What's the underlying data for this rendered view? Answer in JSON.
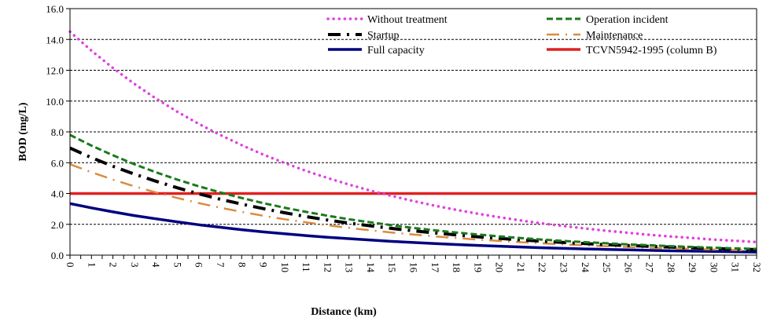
{
  "chart_data": {
    "type": "line",
    "title": "",
    "xlabel": "Distance (km)",
    "ylabel": "BOD (mg/L)",
    "xlim": [
      0,
      32
    ],
    "ylim": [
      0,
      16
    ],
    "yticks": [
      "0.0",
      "2.0",
      "4.0",
      "6.0",
      "8.0",
      "10.0",
      "12.0",
      "14.0",
      "16.0"
    ],
    "xticks": [
      "0",
      "1",
      "2",
      "3",
      "4",
      "5",
      "6",
      "7",
      "8",
      "9",
      "10",
      "11",
      "12",
      "13",
      "14",
      "15",
      "16",
      "17",
      "18",
      "19",
      "20",
      "21",
      "22",
      "23",
      "24",
      "25",
      "26",
      "27",
      "28",
      "29",
      "30",
      "31",
      "32"
    ],
    "grid": "horizontal dashed",
    "legend_position": "top-right",
    "x": [
      0,
      1,
      2,
      3,
      4,
      5,
      6,
      7,
      8,
      9,
      10,
      11,
      12,
      13,
      14,
      15,
      16,
      17,
      18,
      19,
      20,
      21,
      22,
      23,
      24,
      25,
      26,
      27,
      28,
      29,
      30,
      31,
      32
    ],
    "series": [
      {
        "name": "Without treatment",
        "color": "#e040e0",
        "style": "dotted",
        "values": [
          14.5,
          13.27,
          12.15,
          11.12,
          10.17,
          9.31,
          8.52,
          7.8,
          7.14,
          6.53,
          5.98,
          5.47,
          5.01,
          4.58,
          4.19,
          3.84,
          3.51,
          3.21,
          2.94,
          2.69,
          2.46,
          2.25,
          2.06,
          1.89,
          1.73,
          1.58,
          1.45,
          1.32,
          1.21,
          1.11,
          1.01,
          0.93,
          0.85
        ]
      },
      {
        "name": "Operation incident",
        "color": "#1a7a1a",
        "style": "dashed",
        "values": [
          7.8,
          7.11,
          6.48,
          5.9,
          5.38,
          4.9,
          4.47,
          4.07,
          3.71,
          3.38,
          3.08,
          2.81,
          2.56,
          2.33,
          2.13,
          1.94,
          1.77,
          1.61,
          1.47,
          1.34,
          1.22,
          1.11,
          1.01,
          0.92,
          0.84,
          0.77,
          0.7,
          0.64,
          0.58,
          0.53,
          0.48,
          0.44,
          0.4
        ]
      },
      {
        "name": "Startup",
        "color": "#000000",
        "style": "dash-dot",
        "values": [
          6.95,
          6.33,
          5.77,
          5.26,
          4.8,
          4.37,
          3.98,
          3.63,
          3.31,
          3.02,
          2.75,
          2.5,
          2.28,
          2.08,
          1.9,
          1.73,
          1.58,
          1.44,
          1.31,
          1.19,
          1.09,
          0.99,
          0.9,
          0.82,
          0.75,
          0.68,
          0.62,
          0.57,
          0.52,
          0.47,
          0.43,
          0.39,
          0.36
        ]
      },
      {
        "name": "Maintenance",
        "color": "#d98c40",
        "style": "dash-dot-dot",
        "values": [
          5.9,
          5.38,
          4.9,
          4.47,
          4.07,
          3.71,
          3.38,
          3.08,
          2.81,
          2.56,
          2.33,
          2.13,
          1.94,
          1.77,
          1.61,
          1.47,
          1.34,
          1.22,
          1.11,
          1.01,
          0.92,
          0.84,
          0.77,
          0.7,
          0.64,
          0.58,
          0.53,
          0.48,
          0.44,
          0.4,
          0.36,
          0.33,
          0.3
        ]
      },
      {
        "name": "Full capacity",
        "color": "#000080",
        "style": "solid",
        "values": [
          3.35,
          3.07,
          2.81,
          2.57,
          2.36,
          2.16,
          1.97,
          1.81,
          1.65,
          1.51,
          1.39,
          1.27,
          1.16,
          1.07,
          0.98,
          0.89,
          0.82,
          0.75,
          0.69,
          0.63,
          0.58,
          0.53,
          0.48,
          0.44,
          0.4,
          0.37,
          0.34,
          0.31,
          0.28,
          0.26,
          0.24,
          0.22,
          0.2
        ]
      },
      {
        "name": "TCVN5942-1995 (column B)",
        "color": "#e02020",
        "style": "solid",
        "values": [
          4,
          4,
          4,
          4,
          4,
          4,
          4,
          4,
          4,
          4,
          4,
          4,
          4,
          4,
          4,
          4,
          4,
          4,
          4,
          4,
          4,
          4,
          4,
          4,
          4,
          4,
          4,
          4,
          4,
          4,
          4,
          4,
          4
        ]
      }
    ]
  }
}
